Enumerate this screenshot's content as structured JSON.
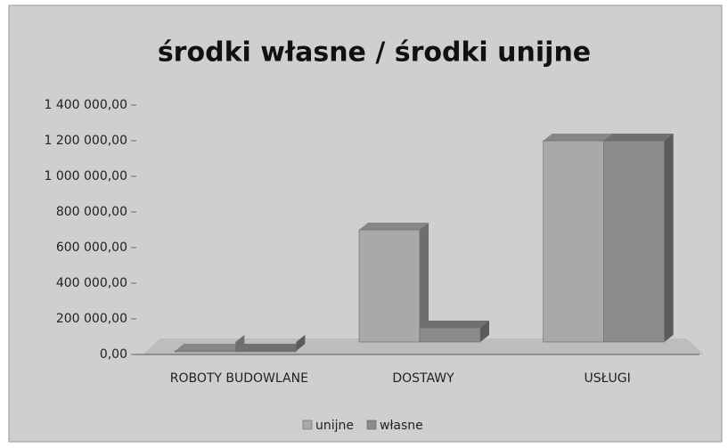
{
  "chart_data": {
    "type": "bar3d",
    "title": "środki własne / środki unijne",
    "categories": [
      "ROBOTY BUDOWLANE",
      "DOSTAWY",
      "USŁUGI"
    ],
    "series": [
      {
        "name": "unijne",
        "color": "#a9a9a9",
        "values": [
          20000,
          700000,
          1200000
        ]
      },
      {
        "name": "własne",
        "color": "#8c8c8c",
        "values": [
          20000,
          150000,
          1200000
        ]
      }
    ],
    "ylim": [
      0,
      1400000
    ],
    "yticks": [
      {
        "value": 0,
        "label": "0,00"
      },
      {
        "value": 200000,
        "label": "200 000,00"
      },
      {
        "value": 400000,
        "label": "400 000,00"
      },
      {
        "value": 600000,
        "label": "600 000,00"
      },
      {
        "value": 800000,
        "label": "800 000,00"
      },
      {
        "value": 1000000,
        "label": "1 000 000,00"
      },
      {
        "value": 1200000,
        "label": "1 200 000,00"
      },
      {
        "value": 1400000,
        "label": "1 400 000,00"
      }
    ],
    "legend": "bottom"
  }
}
